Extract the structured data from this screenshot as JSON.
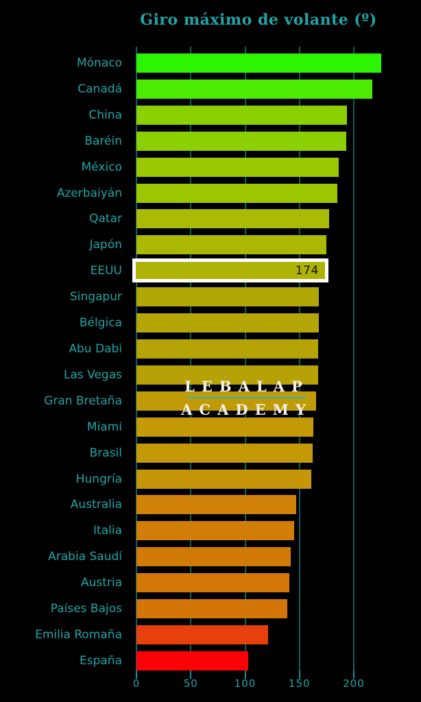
{
  "title": "Giro máximo de volante (º)",
  "watermark": {
    "line1": "LEBALAP",
    "line2": "ACADEMY"
  },
  "colors": {
    "background": "#000000",
    "accent_teal": "#1FA6A6",
    "gridline": "#0F5F68",
    "watermark_text": "#F4F1EA",
    "watermark_divider": "#2AB5B5",
    "highlight_border": "#FFFFFF",
    "highlight_value_text": "#141402"
  },
  "chart_data": {
    "type": "bar",
    "orientation": "horizontal",
    "title": "Giro máximo de volante (º)",
    "categories": [
      "Mónaco",
      "Canadá",
      "China",
      "Baréin",
      "México",
      "Azerbaiyán",
      "Qatar",
      "Japón",
      "EEUU",
      "Singapur",
      "Bélgica",
      "Abu Dabi",
      "Las Vegas",
      "Gran Bretaña",
      "Miami",
      "Brasil",
      "Hungría",
      "Australia",
      "Italia",
      "Arabia Saudí",
      "Austria",
      "Países Bajos",
      "Emilia Romaña",
      "España"
    ],
    "values": [
      225,
      217,
      194,
      193,
      186,
      185,
      177,
      175,
      174,
      168,
      168,
      167,
      167,
      165,
      163,
      162,
      161,
      147,
      145,
      142,
      141,
      139,
      121,
      103
    ],
    "bar_colors": [
      "#2CF403",
      "#4BEC02",
      "#8BD102",
      "#8DD002",
      "#9BC803",
      "#9DC603",
      "#A9BB04",
      "#ABB804",
      "#AFB305",
      "#B2A805",
      "#B3A606",
      "#B4A406",
      "#B6A106",
      "#C09B07",
      "#C49A07",
      "#C59808",
      "#C69608",
      "#D08108",
      "#D17D08",
      "#D27A08",
      "#D37708",
      "#D47508",
      "#E8400C",
      "#FB0207"
    ],
    "xticks": [
      0,
      50,
      100,
      150,
      200
    ],
    "xlim": [
      0,
      235
    ],
    "grid": true,
    "legend": false,
    "highlight": {
      "category": "EEUU",
      "value": 174,
      "value_label": "174"
    }
  }
}
